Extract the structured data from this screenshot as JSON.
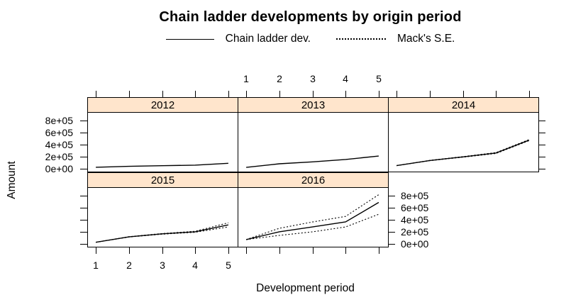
{
  "title": "Chain ladder developments by origin period",
  "legend": {
    "items": [
      {
        "label": "Chain ladder dev.",
        "line_style": "solid"
      },
      {
        "label": "Mack's S.E.",
        "line_style": "dotted"
      }
    ]
  },
  "colors": {
    "background": "#ffffff",
    "strip_bg": "#ffe5cc",
    "line": "#000000",
    "border": "#000000"
  },
  "chart_data": {
    "type": "line",
    "title": "Chain ladder developments by origin period",
    "xlabel": "Development period",
    "ylabel": "Amount",
    "legend_position": "top",
    "x": [
      1,
      2,
      3,
      4,
      5
    ],
    "x_tick_labels": [
      "1",
      "2",
      "3",
      "4",
      "5"
    ],
    "y_tick_values": [
      0,
      200000,
      400000,
      600000,
      800000
    ],
    "y_tick_labels": [
      "0e+00",
      "2e+05",
      "4e+05",
      "6e+05",
      "8e+05"
    ],
    "xlim": [
      0.74,
      5.28
    ],
    "ylim": [
      -50000,
      945000
    ],
    "layout": {
      "rows": 2,
      "cols": 3,
      "grid": [
        [
          "2012",
          "2013",
          "2014"
        ],
        [
          "2015",
          "2016",
          null
        ]
      ]
    },
    "panels": [
      {
        "strip": "2012",
        "row": 0,
        "col": 0,
        "series": {
          "dev": [
            22000,
            38000,
            48000,
            58000,
            88000
          ],
          "upper": null,
          "lower": null
        }
      },
      {
        "strip": "2013",
        "row": 0,
        "col": 1,
        "series": {
          "dev": [
            20000,
            80000,
            112000,
            152000,
            210000
          ],
          "upper": null,
          "lower": null
        }
      },
      {
        "strip": "2014",
        "row": 0,
        "col": 2,
        "series": {
          "dev": [
            50000,
            135000,
            195000,
            260000,
            475000
          ],
          "upper": [
            50000,
            137000,
            200000,
            268000,
            484000
          ],
          "lower": [
            50000,
            133000,
            190000,
            252000,
            466000
          ]
        }
      },
      {
        "strip": "2015",
        "row": 1,
        "col": 0,
        "series": {
          "dev": [
            25000,
            115000,
            165000,
            200000,
            315000
          ],
          "upper": [
            25000,
            118000,
            170000,
            208000,
            350000
          ],
          "lower": [
            25000,
            112000,
            160000,
            192000,
            280000
          ]
        }
      },
      {
        "strip": "2016",
        "row": 1,
        "col": 1,
        "series": {
          "dev": [
            70000,
            200000,
            280000,
            365000,
            690000
          ],
          "upper": [
            70000,
            258000,
            363000,
            457000,
            820000
          ],
          "lower": [
            70000,
            140000,
            199000,
            281000,
            492000
          ]
        }
      }
    ]
  }
}
